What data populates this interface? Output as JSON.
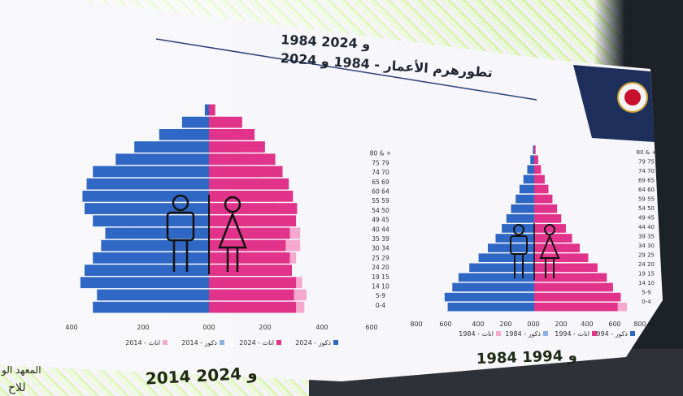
{
  "slide": {
    "title_year": "1984 و 2024",
    "title_main": "تطورهرم الأعمار - 1984 و 2024"
  },
  "chart_data": [
    {
      "type": "bar",
      "orientation": "population-pyramid",
      "categories": [
        "0-4",
        "5-9",
        "14 10",
        "19 15",
        "24 20",
        "25 29",
        "30 34",
        "35 39",
        "40 44",
        "49 45",
        "54 50",
        "55 59",
        "60 64",
        "65 69",
        "74 70",
        "75 79",
        "80 & +"
      ],
      "series": [
        {
          "name": "ذكور - 2024",
          "color": "#2f67c4",
          "values": [
            560,
            540,
            620,
            600,
            560,
            520,
            500,
            560,
            600,
            610,
            590,
            560,
            450,
            360,
            240,
            130,
            20
          ]
        },
        {
          "name": "اناث - 2024",
          "color": "#e2338a",
          "values": [
            420,
            410,
            420,
            400,
            390,
            370,
            390,
            420,
            425,
            405,
            385,
            355,
            320,
            270,
            220,
            160,
            30
          ]
        },
        {
          "name": "ذكور - 2014",
          "color": "#8fb0e6",
          "values": [
            0,
            0,
            0,
            0,
            0,
            0,
            0,
            0,
            0,
            0,
            0,
            0,
            0,
            0,
            0,
            0,
            0
          ]
        },
        {
          "name": "اناث - 2014",
          "color": "#f5a9cf",
          "values": [
            460,
            470,
            450,
            380,
            420,
            440,
            440,
            410,
            360,
            320,
            280,
            250,
            200,
            150,
            110,
            70,
            30
          ]
        }
      ],
      "x_ticks": [
        "400",
        "200",
        "000",
        "200",
        "400",
        "600"
      ],
      "caption": "2014 و 2024",
      "legend_order": [
        "ذكور - 2024",
        "اناث - 2024",
        "ذكور - 2014",
        "اناث - 2014"
      ]
    },
    {
      "type": "bar",
      "orientation": "population-pyramid",
      "categories": [
        "0-4",
        "5-9",
        "14 10",
        "19 15",
        "24 20",
        "29 25",
        "34 30",
        "39 35",
        "44 40",
        "49 45",
        "54 50",
        "59 55",
        "64 60",
        "69 65",
        "74 70",
        "79 75",
        "80 & +"
      ],
      "series": [
        {
          "name": "ذكور - 1994",
          "color": "#2f67c4",
          "values": [
            560,
            580,
            530,
            490,
            420,
            360,
            300,
            250,
            210,
            180,
            150,
            120,
            95,
            70,
            45,
            25,
            8
          ]
        },
        {
          "name": "اناث - 1994",
          "color": "#e2338a",
          "values": [
            540,
            560,
            510,
            470,
            410,
            350,
            295,
            245,
            205,
            175,
            148,
            118,
            92,
            68,
            44,
            26,
            9
          ]
        },
        {
          "name": "ذكور - 1984",
          "color": "#8fb0e6",
          "values": [
            0,
            0,
            0,
            0,
            0,
            0,
            0,
            0,
            0,
            0,
            0,
            0,
            0,
            0,
            0,
            0,
            0
          ]
        },
        {
          "name": "اناث - 1984",
          "color": "#f5a9cf",
          "values": [
            600,
            560,
            500,
            430,
            360,
            300,
            250,
            200,
            170,
            150,
            120,
            95,
            70,
            50,
            30,
            18,
            8
          ]
        }
      ],
      "x_ticks": [
        "800",
        "600",
        "400",
        "200",
        "000",
        "200",
        "400",
        "600",
        "800"
      ],
      "caption": "1984 و 1994",
      "legend_order": [
        "ذكور - 1994",
        "اناث - 1994",
        "ذكور - 1984",
        "اناث - 1984"
      ]
    }
  ],
  "legend_left": {
    "items": [
      "ذكور - 2024",
      "اناث - 2024",
      "ذكور - 2014",
      "اناث - 2014"
    ],
    "colors": [
      "#2f67c4",
      "#e2338a",
      "#8fb0e6",
      "#f5a9cf"
    ]
  },
  "legend_right": {
    "items": [
      "ذكور - 1994",
      "اناث - 1994",
      "ذكور - 1984",
      "اناث - 1984"
    ],
    "colors": [
      "#2f67c4",
      "#e2338a",
      "#8fb0e6",
      "#f5a9cf"
    ]
  },
  "partial_text": {
    "left_edge_a": "المعهد الو",
    "left_edge_b": "للاح"
  }
}
